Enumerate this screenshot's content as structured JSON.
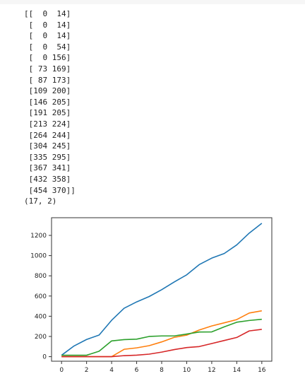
{
  "output": {
    "array_lines": [
      "[[  0  14]",
      " [  0  14]",
      " [  0  14]",
      " [  0  54]",
      " [  0 156]",
      " [ 73 169]",
      " [ 87 173]",
      " [109 200]",
      " [146 205]",
      " [191 205]",
      " [213 224]",
      " [264 244]",
      " [304 245]",
      " [335 295]",
      " [367 341]",
      " [432 358]",
      " [454 370]]"
    ],
    "shape_line": "(17, 2)"
  },
  "colors": {
    "series": [
      "#1f77b4",
      "#ff7f0e",
      "#2ca02c",
      "#d62728"
    ],
    "axes": "#333333",
    "text": "#222222"
  },
  "chart_data": {
    "type": "line",
    "x": [
      0,
      1,
      2,
      3,
      4,
      5,
      6,
      7,
      8,
      9,
      10,
      11,
      12,
      13,
      14,
      15,
      16
    ],
    "xlim": [
      -0.8,
      16.8
    ],
    "ylim": [
      -45,
      1375
    ],
    "xticks": [
      0,
      2,
      4,
      6,
      8,
      10,
      12,
      14,
      16
    ],
    "yticks": [
      0,
      200,
      400,
      600,
      800,
      1000,
      1200
    ],
    "grid": false,
    "legend": "none",
    "series": [
      {
        "values": [
          14,
          106,
          170,
          214,
          360,
          479,
          542,
          595,
          663,
          739,
          810,
          911,
          975,
          1021,
          1106,
          1223,
          1320
        ]
      },
      {
        "values": [
          0,
          0,
          0,
          0,
          0,
          73,
          87,
          109,
          146,
          191,
          213,
          264,
          304,
          335,
          367,
          432,
          454
        ]
      },
      {
        "values": [
          14,
          14,
          14,
          54,
          156,
          169,
          173,
          200,
          205,
          205,
          224,
          244,
          245,
          295,
          341,
          358,
          370
        ]
      },
      {
        "values": [
          0,
          0,
          0,
          0,
          0,
          10,
          15,
          25,
          45,
          70,
          90,
          100,
          130,
          160,
          190,
          255,
          270
        ]
      }
    ]
  }
}
